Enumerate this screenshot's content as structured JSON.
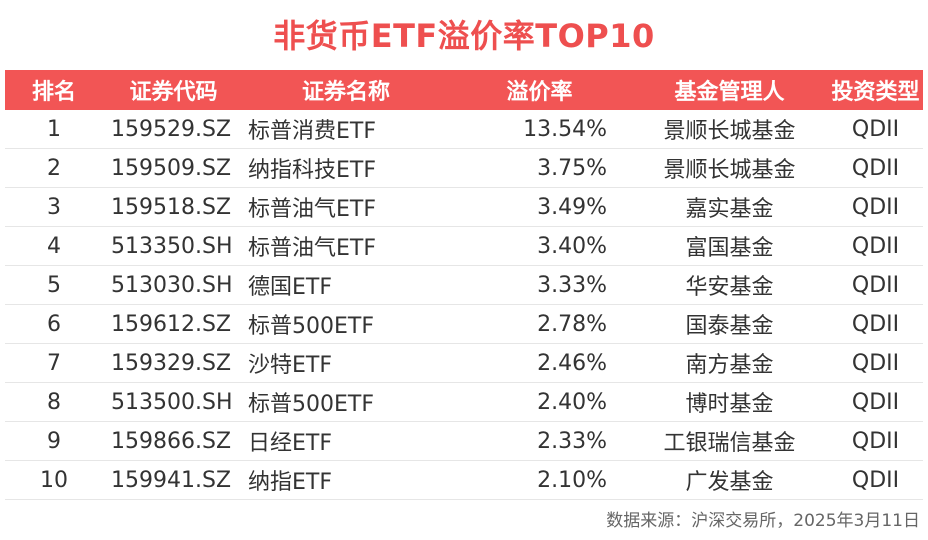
{
  "colors": {
    "title": "#ee4f4f",
    "header_bg": "#f25555",
    "header_text": "#ffffff",
    "body_text": "#333333",
    "divider": "#e6e6e6"
  },
  "chart_data": {
    "type": "table",
    "title": "非货币ETF溢价率TOP10",
    "columns": [
      "排名",
      "证券代码",
      "证券名称",
      "溢价率",
      "基金管理人",
      "投资类型"
    ],
    "rows": [
      [
        "1",
        "159529.SZ",
        "标普消费ETF",
        "13.54%",
        "景顺长城基金",
        "QDII"
      ],
      [
        "2",
        "159509.SZ",
        "纳指科技ETF",
        "3.75%",
        "景顺长城基金",
        "QDII"
      ],
      [
        "3",
        "159518.SZ",
        "标普油气ETF",
        "3.49%",
        "嘉实基金",
        "QDII"
      ],
      [
        "4",
        "513350.SH",
        "标普油气ETF",
        "3.40%",
        "富国基金",
        "QDII"
      ],
      [
        "5",
        "513030.SH",
        "德国ETF",
        "3.33%",
        "华安基金",
        "QDII"
      ],
      [
        "6",
        "159612.SZ",
        "标普500ETF",
        "2.78%",
        "国泰基金",
        "QDII"
      ],
      [
        "7",
        "159329.SZ",
        "沙特ETF",
        "2.46%",
        "南方基金",
        "QDII"
      ],
      [
        "8",
        "513500.SH",
        "标普500ETF",
        "2.40%",
        "博时基金",
        "QDII"
      ],
      [
        "9",
        "159866.SZ",
        "日经ETF",
        "2.33%",
        "工银瑞信基金",
        "QDII"
      ],
      [
        "10",
        "159941.SZ",
        "纳指ETF",
        "2.10%",
        "广发基金",
        "QDII"
      ]
    ],
    "source": "数据来源：沪深交易所，2025年3月11日"
  }
}
